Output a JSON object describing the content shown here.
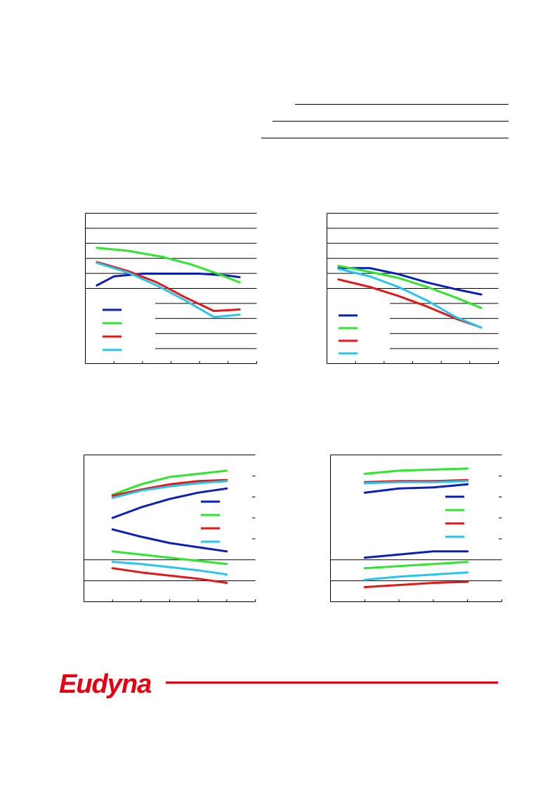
{
  "brand": {
    "logo_text": "Eudyna",
    "color": "#e60012"
  },
  "series_colors": [
    "#0a1fb8",
    "#2fe62f",
    "#e01818",
    "#27c4ee"
  ],
  "chart_data": [
    {
      "type": "line",
      "title": "",
      "xlabel": "",
      "ylabel": "",
      "xlim": [
        0,
        6
      ],
      "ylim": [
        0,
        10
      ],
      "y_gridlines": [
        1,
        2,
        3,
        4,
        5,
        6,
        7,
        8,
        9
      ],
      "x_ticks": [
        1,
        2,
        3,
        4,
        5
      ],
      "legend": "bottom-left",
      "series": [
        {
          "color": "#0a1fb8",
          "x": [
            0.4,
            1.0,
            2.0,
            3.0,
            4.0,
            5.0,
            5.4
          ],
          "y": [
            5.2,
            5.8,
            5.98,
            5.98,
            5.98,
            5.85,
            5.75
          ]
        },
        {
          "color": "#2fe62f",
          "x": [
            0.4,
            1.5,
            2.7,
            3.7,
            4.6,
            5.4
          ],
          "y": [
            7.7,
            7.5,
            7.1,
            6.6,
            6.0,
            5.4
          ]
        },
        {
          "color": "#e01818",
          "x": [
            0.4,
            1.5,
            2.5,
            3.5,
            4.5,
            5.4
          ],
          "y": [
            6.75,
            6.15,
            5.4,
            4.4,
            3.5,
            3.6
          ]
        },
        {
          "color": "#27c4ee",
          "x": [
            0.4,
            1.5,
            2.5,
            3.5,
            4.5,
            5.4
          ],
          "y": [
            6.7,
            6.05,
            5.2,
            4.2,
            3.1,
            3.25
          ]
        }
      ]
    },
    {
      "type": "line",
      "title": "",
      "xlabel": "",
      "ylabel": "",
      "xlim": [
        0,
        6
      ],
      "ylim": [
        0,
        10
      ],
      "y_gridlines": [
        1,
        2,
        3,
        4,
        5,
        6,
        7,
        8,
        9
      ],
      "x_ticks": [
        1,
        2,
        3,
        4,
        5
      ],
      "legend": "bottom-left",
      "series": [
        {
          "color": "#0a1fb8",
          "x": [
            0.4,
            1.5,
            2.5,
            3.5,
            4.5,
            5.4
          ],
          "y": [
            6.35,
            6.35,
            5.95,
            5.4,
            4.95,
            4.6
          ]
        },
        {
          "color": "#2fe62f",
          "x": [
            0.4,
            1.5,
            2.5,
            3.5,
            4.5,
            5.4
          ],
          "y": [
            6.5,
            6.1,
            5.7,
            5.1,
            4.4,
            3.7
          ]
        },
        {
          "color": "#e01818",
          "x": [
            0.4,
            1.5,
            2.5,
            3.5,
            4.5,
            5.4
          ],
          "y": [
            5.6,
            5.1,
            4.5,
            3.8,
            3.0,
            2.4
          ]
        },
        {
          "color": "#27c4ee",
          "x": [
            0.4,
            1.5,
            2.5,
            3.5,
            4.5,
            5.4
          ],
          "y": [
            6.3,
            5.8,
            5.1,
            4.2,
            3.1,
            2.4
          ]
        }
      ]
    },
    {
      "type": "line",
      "title": "",
      "xlabel": "",
      "ylabel": "",
      "xlim": [
        0,
        6
      ],
      "ylim": [
        0,
        7
      ],
      "y_gridlines": [
        1,
        2,
        3,
        4,
        5,
        6
      ],
      "x_ticks": [
        1,
        2,
        3,
        4,
        5
      ],
      "legend": "right",
      "series": [
        {
          "color": "#0a1fb8",
          "x": [
            1,
            2,
            3,
            4,
            5
          ],
          "y": [
            4.0,
            4.5,
            4.9,
            5.2,
            5.4
          ]
        },
        {
          "color": "#2fe62f",
          "x": [
            1,
            2,
            3,
            4,
            5
          ],
          "y": [
            5.1,
            5.6,
            5.95,
            6.1,
            6.25
          ]
        },
        {
          "color": "#e01818",
          "x": [
            1,
            2,
            3,
            4,
            5
          ],
          "y": [
            5.05,
            5.35,
            5.6,
            5.75,
            5.8
          ]
        },
        {
          "color": "#27c4ee",
          "x": [
            1,
            2,
            3,
            4,
            5
          ],
          "y": [
            4.95,
            5.3,
            5.5,
            5.65,
            5.75
          ]
        },
        {
          "color": "#0a1fb8",
          "x": [
            1,
            2,
            3,
            4,
            5
          ],
          "y": [
            3.45,
            3.1,
            2.8,
            2.6,
            2.4
          ]
        },
        {
          "color": "#2fe62f",
          "x": [
            1,
            2,
            3,
            4,
            5
          ],
          "y": [
            2.4,
            2.25,
            2.1,
            1.95,
            1.8
          ]
        },
        {
          "color": "#e01818",
          "x": [
            1,
            2,
            3,
            4,
            5
          ],
          "y": [
            1.6,
            1.4,
            1.25,
            1.1,
            0.9
          ]
        },
        {
          "color": "#27c4ee",
          "x": [
            1,
            2,
            3,
            4,
            5
          ],
          "y": [
            1.9,
            1.8,
            1.65,
            1.5,
            1.3
          ]
        }
      ]
    },
    {
      "type": "line",
      "title": "",
      "xlabel": "",
      "ylabel": "",
      "xlim": [
        0,
        5
      ],
      "ylim": [
        0,
        7
      ],
      "y_gridlines": [
        1,
        2,
        3,
        4,
        5,
        6
      ],
      "x_ticks": [
        1,
        2,
        3,
        4
      ],
      "legend": "right",
      "series": [
        {
          "color": "#0a1fb8",
          "x": [
            1,
            2,
            3,
            4
          ],
          "y": [
            5.2,
            5.4,
            5.45,
            5.6
          ]
        },
        {
          "color": "#2fe62f",
          "x": [
            1,
            2,
            3,
            4
          ],
          "y": [
            6.1,
            6.25,
            6.3,
            6.35
          ]
        },
        {
          "color": "#e01818",
          "x": [
            1,
            2,
            3,
            4
          ],
          "y": [
            5.7,
            5.75,
            5.75,
            5.8
          ]
        },
        {
          "color": "#27c4ee",
          "x": [
            1,
            2,
            3,
            4
          ],
          "y": [
            5.65,
            5.7,
            5.7,
            5.75
          ]
        },
        {
          "color": "#0a1fb8",
          "x": [
            1,
            2,
            3,
            4
          ],
          "y": [
            2.1,
            2.25,
            2.4,
            2.4
          ]
        },
        {
          "color": "#2fe62f",
          "x": [
            1,
            2,
            3,
            4
          ],
          "y": [
            1.6,
            1.7,
            1.8,
            1.9
          ]
        },
        {
          "color": "#e01818",
          "x": [
            1,
            2,
            3,
            4
          ],
          "y": [
            0.7,
            0.8,
            0.9,
            0.95
          ]
        },
        {
          "color": "#27c4ee",
          "x": [
            1,
            2,
            3,
            4
          ],
          "y": [
            1.05,
            1.2,
            1.3,
            1.4
          ]
        }
      ]
    }
  ]
}
